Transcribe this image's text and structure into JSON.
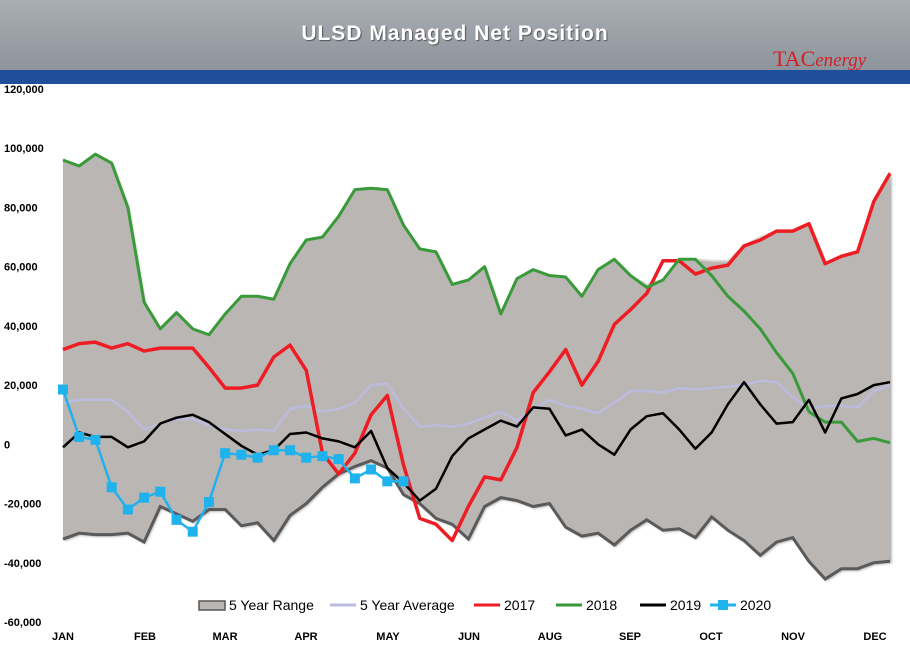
{
  "header": {
    "title": "ULSD Managed Net Position"
  },
  "logo": {
    "tac": "TAC",
    "energy": "energy"
  },
  "colors": {
    "range": "#bab6b4",
    "avg": "#bbbbdd",
    "s2017": "#ee1d23",
    "s2018": "#3a9a3a",
    "s2019": "#000000",
    "s2020": "#1fb2ec",
    "header": "#9aa0a6",
    "band": "#1f4e9a"
  },
  "chart_data": {
    "type": "line",
    "title": "ULSD Managed Net Position",
    "y_ticks": [
      120000,
      100000,
      80000,
      60000,
      40000,
      20000,
      0,
      -20000,
      -40000,
      -60000
    ],
    "y_tick_labels": [
      "120,000",
      "100,000",
      "80,000",
      "60,000",
      "40,000",
      "20,000",
      "0",
      "-20,000",
      "-40,000",
      "-60,000"
    ],
    "ylim": [
      -60000,
      120000
    ],
    "months": [
      "JAN",
      "FEB",
      "MAR",
      "APR",
      "MAY",
      "JUN",
      "AUG",
      "SEP",
      "OCT",
      "NOV",
      "DEC"
    ],
    "x_range": [
      0,
      51
    ],
    "legend": [
      "5 Year Range",
      "5 Year Average",
      "2017",
      "2018",
      "2019",
      "2020"
    ],
    "range_upper": [
      96000,
      94000,
      98000,
      95000,
      80000,
      48000,
      39000,
      44500,
      39000,
      37000,
      44000,
      50000,
      50000,
      49000,
      61000,
      69000,
      70000,
      77000,
      86000,
      86500,
      86000,
      74000,
      66000,
      65000,
      54000,
      55500,
      60000,
      44000,
      56000,
      59000,
      57000,
      56500,
      50000,
      59000,
      62500,
      57000,
      54000,
      55500,
      62500,
      62500,
      62000,
      62000,
      67000,
      70000,
      72000,
      72000,
      74500,
      61000,
      63500,
      65000,
      82000,
      92000
    ],
    "range_lower": [
      -32000,
      -30000,
      -30500,
      -30500,
      -30000,
      -33000,
      -21000,
      -23500,
      -26000,
      -22000,
      -22000,
      -27500,
      -26500,
      -32500,
      -24000,
      -20000,
      -14500,
      -10000,
      -7500,
      -5500,
      -8000,
      -17000,
      -20000,
      -25000,
      -27000,
      -32000,
      -21000,
      -18000,
      -19000,
      -21000,
      -20000,
      -28000,
      -31000,
      -30000,
      -34000,
      -29000,
      -25500,
      -29000,
      -28500,
      -31500,
      -24500,
      -29000,
      -32500,
      -37500,
      -33000,
      -31500,
      -39500,
      -45500,
      -42000,
      -42000,
      -40000,
      -39500
    ],
    "series": [
      {
        "name": "5 Year Average",
        "values": [
          14000,
          15000,
          15000,
          15000,
          11000,
          5000,
          7000,
          8500,
          8500,
          6500,
          5000,
          4500,
          5000,
          4500,
          12000,
          13000,
          11000,
          12000,
          14000,
          20000,
          20500,
          12000,
          6000,
          6500,
          6000,
          7000,
          9000,
          11000,
          8000,
          12000,
          15000,
          13000,
          12000,
          10500,
          14000,
          18000,
          18000,
          17500,
          19000,
          18500,
          19000,
          19500,
          20000,
          21500,
          21000,
          16000,
          12000,
          13000,
          13000,
          12500,
          18000,
          20000
        ]
      },
      {
        "name": "2017",
        "values": [
          32000,
          34000,
          34500,
          32500,
          34000,
          31500,
          32500,
          32500,
          32500,
          26000,
          19000,
          19000,
          20000,
          29500,
          33500,
          25000,
          -3000,
          -10000,
          -3000,
          10000,
          16500,
          -7000,
          -25000,
          -27000,
          -32500,
          -21000,
          -11000,
          -12000,
          -1000,
          17500,
          24500,
          32000,
          20000,
          28000,
          40500,
          45500,
          51000,
          62000,
          62000,
          57500,
          59500,
          60500,
          67000,
          69000,
          72000,
          72000,
          74500,
          61000,
          63500,
          65000,
          82000,
          91500
        ]
      },
      {
        "name": "2018",
        "values": [
          96000,
          94000,
          98000,
          95000,
          80000,
          48000,
          39000,
          44500,
          39000,
          37000,
          44000,
          50000,
          50000,
          49000,
          61000,
          69000,
          70000,
          77000,
          86000,
          86500,
          86000,
          74000,
          66000,
          65000,
          54000,
          55500,
          60000,
          44000,
          56000,
          59000,
          57000,
          56500,
          50000,
          59000,
          62500,
          57000,
          53000,
          55500,
          62500,
          62500,
          57000,
          50000,
          45000,
          39000,
          31000,
          24000,
          11000,
          7500,
          7500,
          1000,
          2000,
          500
        ]
      },
      {
        "name": "2019",
        "values": [
          -1000,
          4000,
          2500,
          2500,
          -1000,
          1000,
          7000,
          9000,
          10000,
          7500,
          3500,
          -500,
          -3500,
          -2000,
          3500,
          4000,
          2000,
          1000,
          -1000,
          4500,
          -8000,
          -13000,
          -19000,
          -15000,
          -4000,
          2000,
          5000,
          8000,
          6000,
          12500,
          12000,
          3000,
          5000,
          0,
          -3500,
          5000,
          9500,
          10500,
          5000,
          -1500,
          4000,
          13500,
          21000,
          13500,
          7000,
          7500,
          15000,
          4000,
          15500,
          17000,
          20000,
          21000
        ]
      },
      {
        "name": "2020",
        "values": [
          18500,
          2500,
          1500,
          -14500,
          -22000,
          -18000,
          -16000,
          -25500,
          -29500,
          -19500,
          -3000,
          -3500,
          -4500,
          -2000,
          -2000,
          -4500,
          -4000,
          -5000,
          -11500,
          -8500,
          -12500,
          -12500
        ]
      }
    ]
  }
}
